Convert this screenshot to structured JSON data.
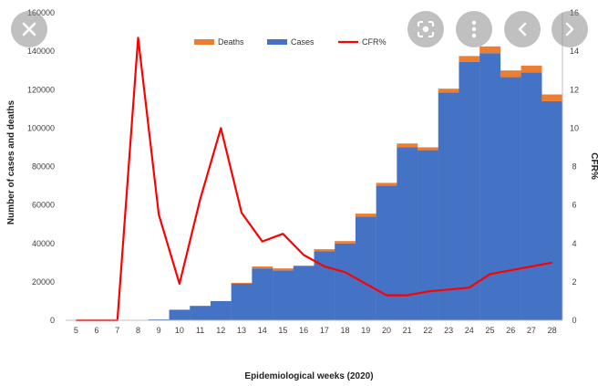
{
  "overlay": {
    "close_icon": "close-icon",
    "lens_icon": "google-lens-icon",
    "more_icon": "more-vertical-icon",
    "prev_icon": "chevron-left-icon",
    "next_icon": "chevron-right-icon"
  },
  "colors": {
    "cases": "#4472C4",
    "deaths": "#ED7D31",
    "cfr": "#FF0000",
    "axis": "#BFBFBF"
  },
  "chart_data": {
    "type": "bar",
    "xlabel": "Epidemiological  weeks (2020)",
    "ylabel": "Number of cases and deaths",
    "y2label": "CFR%",
    "ylim": [
      0,
      160000
    ],
    "y2lim": [
      0,
      16
    ],
    "yticks": [
      "0",
      "20000",
      "40000",
      "60000",
      "80000",
      "100000",
      "120000",
      "140000",
      "160000"
    ],
    "y2ticks": [
      "0",
      "2",
      "4",
      "6",
      "8",
      "10",
      "12",
      "14",
      "16"
    ],
    "categories": [
      "5",
      "6",
      "7",
      "8",
      "9",
      "10",
      "11",
      "12",
      "13",
      "14",
      "15",
      "16",
      "17",
      "18",
      "19",
      "20",
      "21",
      "22",
      "23",
      "24",
      "25",
      "26",
      "27",
      "28"
    ],
    "legend": {
      "position": "top",
      "labels": [
        "Deaths",
        "Cases",
        "CFR%"
      ]
    },
    "series": [
      {
        "name": "Cases",
        "type": "bar-stacked",
        "values": [
          0,
          0,
          0,
          0,
          500,
          5500,
          7500,
          10000,
          19000,
          27000,
          26000,
          28000,
          36000,
          40000,
          54000,
          70000,
          90000,
          88500,
          118500,
          134500,
          139000,
          126500,
          129000,
          114000
        ]
      },
      {
        "name": "Deaths",
        "type": "bar-stacked",
        "values": [
          0,
          0,
          0,
          0,
          0,
          0,
          0,
          0,
          500,
          1000,
          1000,
          500,
          1000,
          1200,
          1500,
          1500,
          2000,
          1500,
          2000,
          3000,
          3500,
          3500,
          3500,
          3500
        ]
      },
      {
        "name": "CFR%",
        "type": "line",
        "axis": "secondary",
        "values": [
          0,
          0,
          0,
          14.7,
          5.5,
          1.9,
          6.3,
          10.0,
          5.6,
          4.1,
          4.5,
          3.4,
          2.8,
          2.5,
          1.9,
          1.3,
          1.3,
          1.5,
          1.6,
          1.7,
          2.4,
          2.6,
          2.8,
          3.0
        ]
      }
    ]
  }
}
